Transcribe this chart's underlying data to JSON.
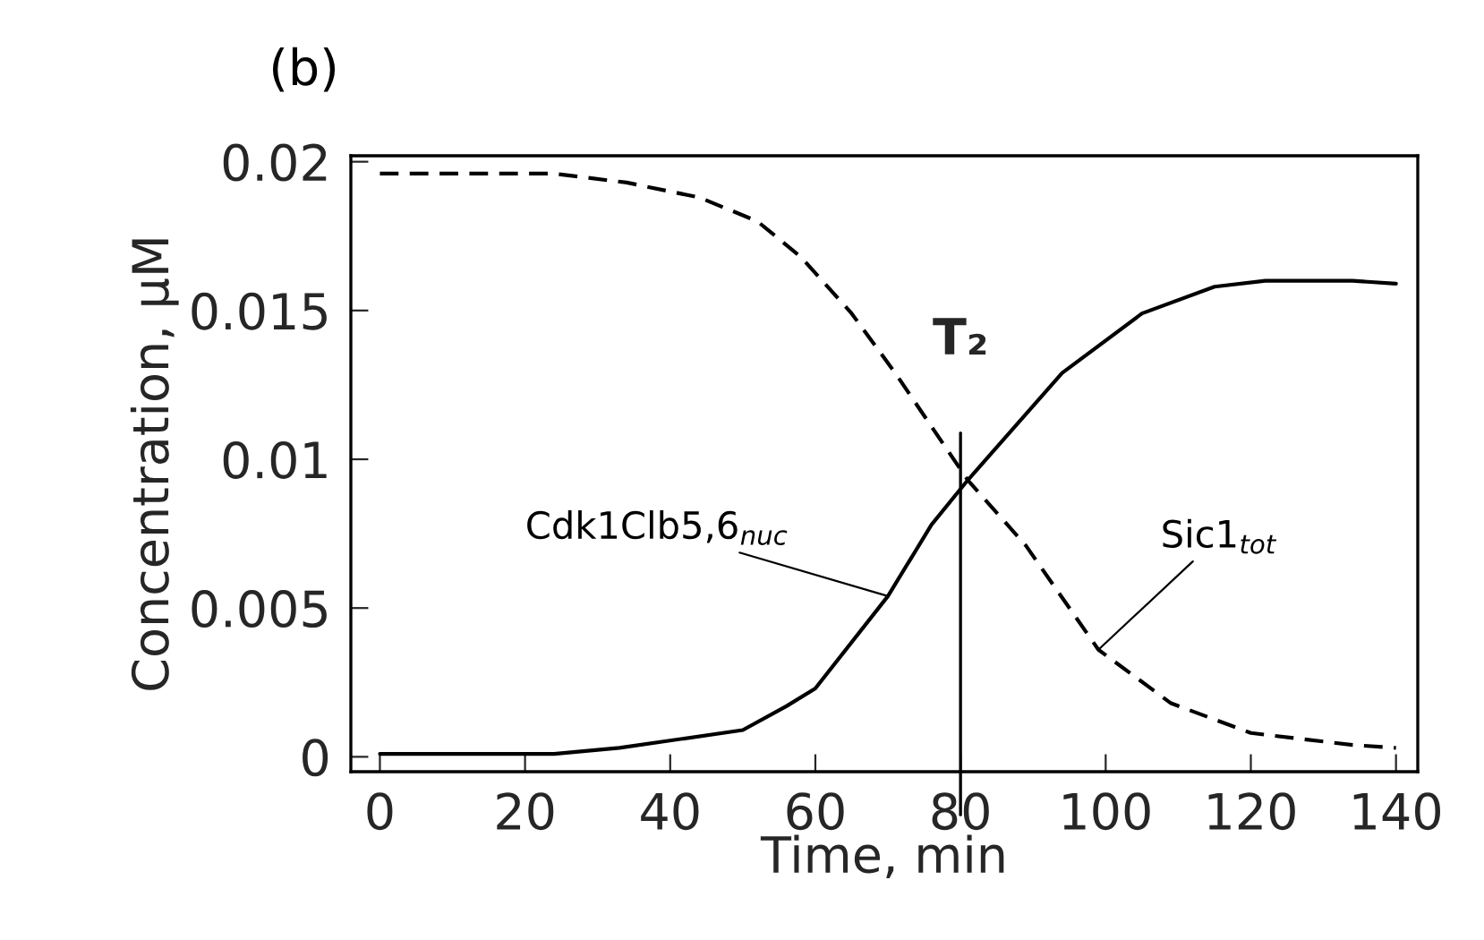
{
  "chart_data": {
    "type": "line",
    "title": "(b)",
    "xlabel": "Time, min",
    "ylabel": "Concentration, µM",
    "xlim": [
      -4,
      143
    ],
    "ylim": [
      -0.0005,
      0.0202
    ],
    "xticks": [
      0,
      20,
      40,
      60,
      80,
      100,
      120,
      140
    ],
    "yticks": [
      {
        "value": 0,
        "label": "0"
      },
      {
        "value": 0.005,
        "label": "0.005"
      },
      {
        "value": 0.01,
        "label": "0.01"
      },
      {
        "value": 0.015,
        "label": "0.015"
      },
      {
        "value": 0.02,
        "label": "0.02"
      }
    ],
    "grid": false,
    "legend": false,
    "marker": "none",
    "series": [
      {
        "name": "Cdk1Clb5,6$_{nuc}$",
        "color": "#000000",
        "line_style": "solid",
        "x": [
          0,
          24,
          33,
          50,
          56,
          60,
          70,
          76,
          81,
          94,
          105,
          115,
          122,
          134,
          140
        ],
        "values": [
          0.0001,
          0.0001,
          0.0003,
          0.0009,
          0.0017,
          0.0023,
          0.0054,
          0.0078,
          0.0093,
          0.0129,
          0.0149,
          0.0158,
          0.016,
          0.016,
          0.0159
        ]
      },
      {
        "name": "Sic1$_{tot}$",
        "color": "#000000",
        "line_style": "dashed",
        "x": [
          0,
          24,
          34,
          44,
          52,
          58,
          65,
          71,
          76,
          81,
          89,
          99,
          109,
          120,
          134,
          140
        ],
        "values": [
          0.0196,
          0.0196,
          0.0193,
          0.0188,
          0.018,
          0.0168,
          0.0149,
          0.0129,
          0.0111,
          0.0093,
          0.0071,
          0.0036,
          0.0018,
          0.0008,
          0.0004,
          0.0003
        ]
      }
    ],
    "ref_lines": [
      {
        "axis": "x",
        "value": 80,
        "label": "T₂",
        "color": "#000000",
        "line_style": "solid"
      }
    ]
  }
}
